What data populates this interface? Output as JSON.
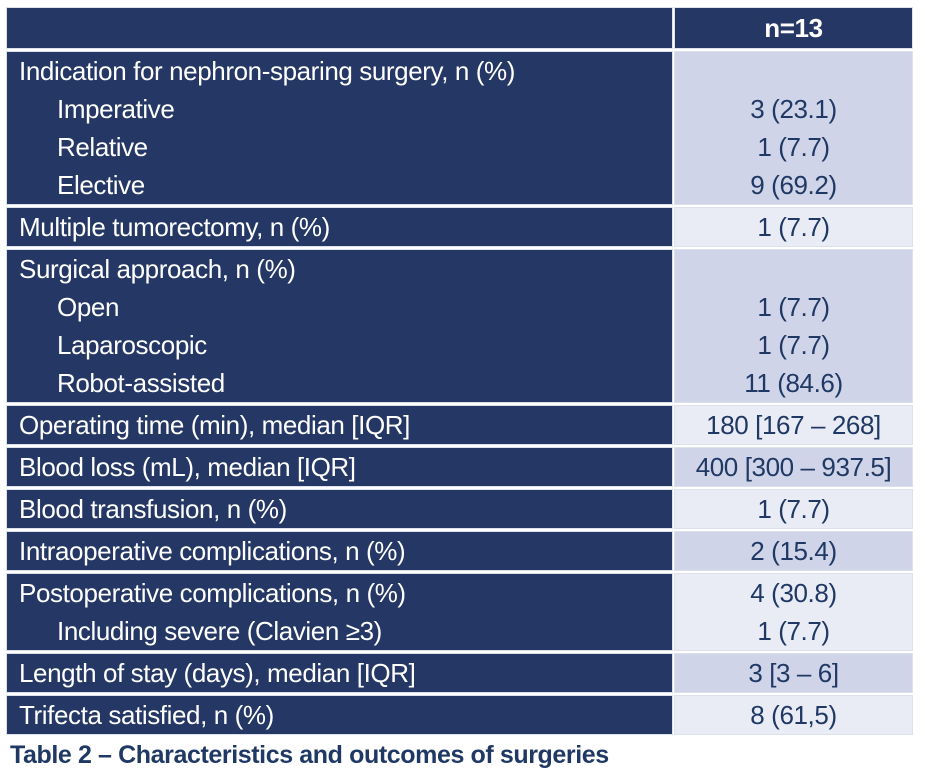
{
  "colors": {
    "navy": "#253765",
    "lavender": "#cfd4e8",
    "pale": "#e9ecf5",
    "value_text": "#1f3864",
    "background": "#ffffff"
  },
  "table": {
    "header": {
      "label": "",
      "value": "n=13"
    },
    "rows": [
      {
        "type": "group",
        "label": "Indication for nephron-sparing surgery, n (%)",
        "value": "",
        "subs": [
          {
            "label": "Imperative",
            "value": "3 (23.1)"
          },
          {
            "label": "Relative",
            "value": "1 (7.7)"
          },
          {
            "label": "Elective",
            "value": "9 (69.2)"
          }
        ]
      },
      {
        "type": "single",
        "label": "Multiple tumorectomy, n (%)",
        "value": "1 (7.7)"
      },
      {
        "type": "group",
        "label": "Surgical approach, n (%)",
        "value": "",
        "subs": [
          {
            "label": "Open",
            "value": "1 (7.7)"
          },
          {
            "label": "Laparoscopic",
            "value": "1 (7.7)"
          },
          {
            "label": "Robot-assisted",
            "value": "11 (84.6)"
          }
        ]
      },
      {
        "type": "single",
        "label": "Operating time (min), median [IQR]",
        "value": "180 [167 – 268]"
      },
      {
        "type": "single",
        "label": "Blood loss (mL), median [IQR]",
        "value": "400 [300 – 937.5]"
      },
      {
        "type": "single",
        "label": "Blood transfusion, n (%)",
        "value": "1 (7.7)"
      },
      {
        "type": "single",
        "label": "Intraoperative complications, n (%)",
        "value": "2 (15.4)"
      },
      {
        "type": "group",
        "label": "Postoperative complications, n (%)",
        "value": "4 (30.8)",
        "subs": [
          {
            "label": "Including severe (Clavien ≥3)",
            "value": "1 (7.7)"
          }
        ]
      },
      {
        "type": "single",
        "label": "Length of stay (days), median [IQR]",
        "value": "3 [3 – 6]"
      },
      {
        "type": "single",
        "label": "Trifecta satisfied, n (%)",
        "value": "8 (61,5)"
      }
    ],
    "caption": "Table 2 – Characteristics and outcomes of surgeries"
  }
}
